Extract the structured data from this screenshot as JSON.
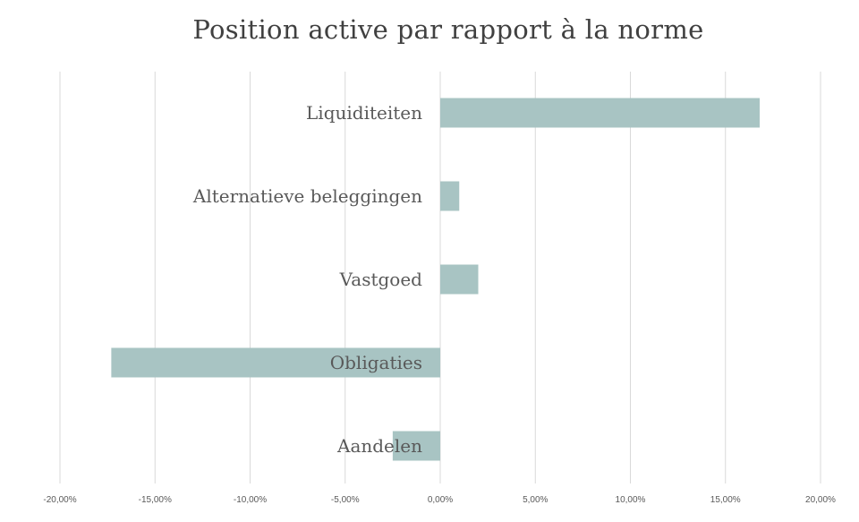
{
  "chart_data": {
    "type": "bar",
    "orientation": "horizontal",
    "title": "Position active par rapport à la norme",
    "categories": [
      "Liquiditeiten",
      "Alternatieve beleggingen",
      "Vastgoed",
      "Obligaties",
      "Aandelen"
    ],
    "values": [
      16.8,
      1.0,
      2.0,
      -17.3,
      -2.5
    ],
    "xlim": [
      -20,
      20
    ],
    "x_ticks": [
      -20,
      -15,
      -10,
      -5,
      0,
      5,
      10,
      15,
      20
    ],
    "x_tick_labels": [
      "-20,00%",
      "-15,00%",
      "-10,00%",
      "-5,00%",
      "0,00%",
      "5,00%",
      "10,00%",
      "15,00%",
      "20,00%"
    ],
    "bar_color": "#a8c4c3",
    "grid": true,
    "legend": "none"
  }
}
